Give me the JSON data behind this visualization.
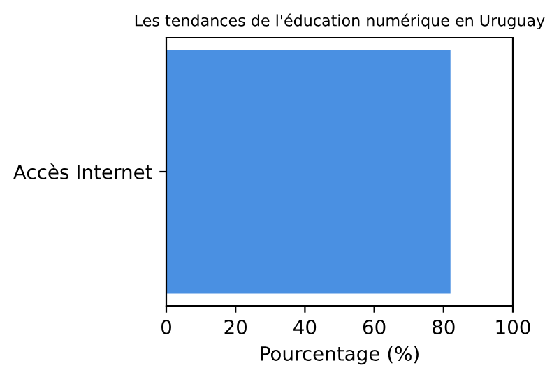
{
  "chart_data": {
    "type": "bar",
    "orientation": "horizontal",
    "title": "Les tendances de l'éducation numérique en Uruguay",
    "xlabel": "Pourcentage (%)",
    "categories": [
      "Accès Internet"
    ],
    "values": [
      82
    ],
    "color": "#4a90e2",
    "xlim": [
      0,
      100
    ],
    "xticks": [
      0,
      20,
      40,
      60,
      80,
      100
    ],
    "grid": false
  }
}
